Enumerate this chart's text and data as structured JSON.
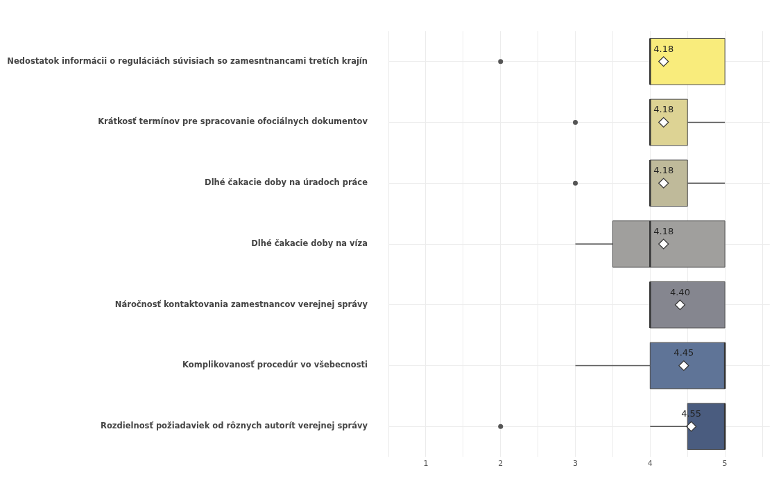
{
  "chart_data": {
    "type": "box",
    "orientation": "horizontal",
    "categories": [
      "Nedostatok informácii o reguláciách súvisiach so zamesntnancami tretích krajín",
      "Krátkosť termínov pre spracovanie ofociálnych dokumentov",
      "Dlhé čakacie doby na úradoch práce",
      "Dlhé čakacie doby na víza",
      "Náročnosť kontaktovania zamestnancov verejnej správy",
      "Komplikovanosť procedúr vo všebecnosti",
      "Rozdielnosť požiadaviek od rôznych autorít verejnej správy"
    ],
    "boxes": [
      {
        "low": 4,
        "q1": 4,
        "median": 4,
        "q3": 5,
        "high": 5,
        "mean": 4.18,
        "outliers": [
          2
        ]
      },
      {
        "low": 4,
        "q1": 4,
        "median": 4,
        "q3": 4.5,
        "high": 5,
        "mean": 4.18,
        "outliers": [
          3
        ]
      },
      {
        "low": 4,
        "q1": 4,
        "median": 4,
        "q3": 4.5,
        "high": 5,
        "mean": 4.18,
        "outliers": [
          3
        ]
      },
      {
        "low": 3,
        "q1": 3.5,
        "median": 4,
        "q3": 5,
        "high": 5,
        "mean": 4.18
      },
      {
        "low": 4,
        "q1": 4,
        "median": 4,
        "q3": 5,
        "high": 5,
        "mean": 4.4
      },
      {
        "low": 3,
        "q1": 4,
        "median": 5,
        "q3": 5,
        "high": 5,
        "mean": 4.45
      },
      {
        "low": 4,
        "q1": 4.5,
        "median": 5,
        "q3": 5,
        "high": 5,
        "mean": 4.55,
        "outliers": [
          2
        ]
      }
    ],
    "colors": [
      "#f9ec7c",
      "#ddd394",
      "#bfba9a",
      "#a09f9d",
      "#85868f",
      "#5f7497",
      "#4a5c7f"
    ],
    "value_labels": [
      "4.18",
      "4.18",
      "4.18",
      "4.18",
      "4.40",
      "4.45",
      "4.55"
    ],
    "marker": "diamond",
    "xlim": [
      0.5,
      5.6
    ],
    "xticks": [
      {
        "value": 0.5,
        "label": null
      },
      1,
      {
        "value": 1.5,
        "label": null
      },
      2,
      {
        "value": 2.5,
        "label": null
      },
      3,
      {
        "value": 3.5,
        "label": null
      },
      4,
      {
        "value": 4.5,
        "label": null
      },
      5,
      {
        "value": 5.5,
        "label": null
      }
    ],
    "grid": true
  }
}
